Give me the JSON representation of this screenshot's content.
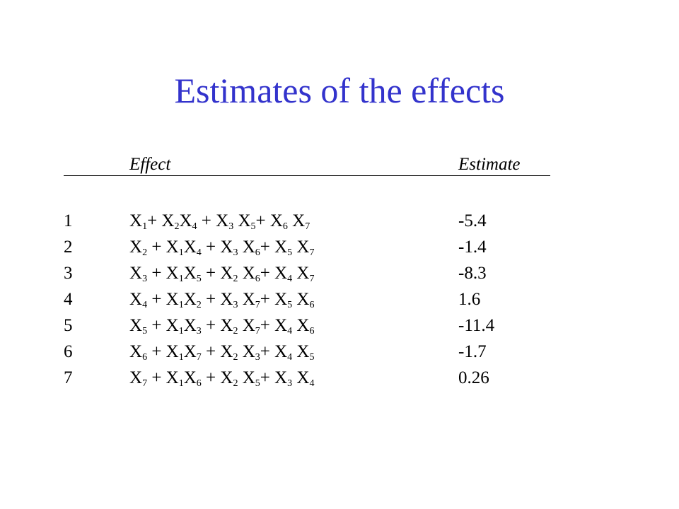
{
  "title": "Estimates of the effects",
  "table": {
    "header": {
      "effect": "Effect",
      "estimate": "Estimate"
    },
    "rows": [
      {
        "number": 1,
        "effect": [
          {
            "base": "X",
            "sub": "1"
          },
          {
            "base": "+ X",
            "sub": "2"
          },
          {
            "base": "X",
            "sub": "4"
          },
          {
            "base": " + X",
            "sub": "3"
          },
          {
            "base": " X",
            "sub": "5"
          },
          {
            "base": "+ X",
            "sub": "6"
          },
          {
            "base": " X",
            "sub": "7"
          }
        ],
        "estimate": -5.4
      },
      {
        "number": 2,
        "effect": [
          {
            "base": "X",
            "sub": "2"
          },
          {
            "base": " + X",
            "sub": "1"
          },
          {
            "base": "X",
            "sub": "4"
          },
          {
            "base": " + X",
            "sub": "3"
          },
          {
            "base": " X",
            "sub": "6"
          },
          {
            "base": "+ X",
            "sub": "5"
          },
          {
            "base": " X",
            "sub": "7"
          }
        ],
        "estimate": -1.4
      },
      {
        "number": 3,
        "effect": [
          {
            "base": "X",
            "sub": "3"
          },
          {
            "base": " + X",
            "sub": "1"
          },
          {
            "base": "X",
            "sub": "5"
          },
          {
            "base": " + X",
            "sub": "2"
          },
          {
            "base": " X",
            "sub": "6"
          },
          {
            "base": "+ X",
            "sub": "4"
          },
          {
            "base": " X",
            "sub": "7"
          }
        ],
        "estimate": -8.3
      },
      {
        "number": 4,
        "effect": [
          {
            "base": "X",
            "sub": "4"
          },
          {
            "base": " + X",
            "sub": "1"
          },
          {
            "base": "X",
            "sub": "2"
          },
          {
            "base": " + X",
            "sub": "3"
          },
          {
            "base": " X",
            "sub": "7"
          },
          {
            "base": "+ X",
            "sub": "5"
          },
          {
            "base": " X",
            "sub": "6"
          }
        ],
        "estimate": 1.6
      },
      {
        "number": 5,
        "effect": [
          {
            "base": "X",
            "sub": "5"
          },
          {
            "base": " + X",
            "sub": "1"
          },
          {
            "base": "X",
            "sub": "3"
          },
          {
            "base": " + X",
            "sub": "2"
          },
          {
            "base": " X",
            "sub": "7"
          },
          {
            "base": "+ X",
            "sub": "4"
          },
          {
            "base": " X",
            "sub": "6"
          }
        ],
        "estimate": -11.4
      },
      {
        "number": 6,
        "effect": [
          {
            "base": "X",
            "sub": "6"
          },
          {
            "base": " + X",
            "sub": "1"
          },
          {
            "base": "X",
            "sub": "7"
          },
          {
            "base": " + X",
            "sub": "2"
          },
          {
            "base": " X",
            "sub": "3"
          },
          {
            "base": "+ X",
            "sub": "4"
          },
          {
            "base": " X",
            "sub": "5"
          }
        ],
        "estimate": -1.7
      },
      {
        "number": 7,
        "effect": [
          {
            "base": "X",
            "sub": "7"
          },
          {
            "base": " + X",
            "sub": "1"
          },
          {
            "base": "X",
            "sub": "6"
          },
          {
            "base": " + X",
            "sub": "2"
          },
          {
            "base": " X",
            "sub": "5"
          },
          {
            "base": "+ X",
            "sub": "3"
          },
          {
            "base": " X",
            "sub": "4"
          }
        ],
        "estimate": 0.26
      }
    ]
  }
}
